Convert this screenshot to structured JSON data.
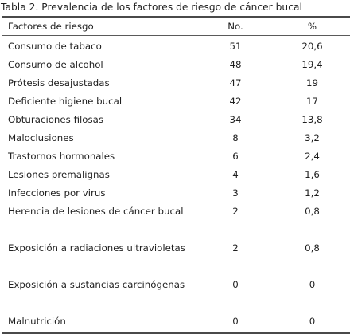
{
  "caption": "Tabla 2. Prevalencia de los factores de riesgo de cáncer bucal",
  "columns": [
    "Factores de riesgo",
    "No.",
    "%"
  ],
  "rows": [
    {
      "factor": "Consumo de tabaco",
      "no": "51",
      "pct": "20,6"
    },
    {
      "factor": "Consumo de alcohol",
      "no": "48",
      "pct": "19,4"
    },
    {
      "factor": "Prótesis desajustadas",
      "no": "47",
      "pct": "19"
    },
    {
      "factor": "Deficiente higiene bucal",
      "no": "42",
      "pct": "17"
    },
    {
      "factor": "Obturaciones filosas",
      "no": "34",
      "pct": "13,8"
    },
    {
      "factor": "Maloclusiones",
      "no": "8",
      "pct": "3,2"
    },
    {
      "factor": "Trastornos hormonales",
      "no": "6",
      "pct": "2,4"
    },
    {
      "factor": "Lesiones premalignas",
      "no": "4",
      "pct": "1,6"
    },
    {
      "factor": "Infecciones por virus",
      "no": "3",
      "pct": "1,2"
    },
    {
      "factor": "Herencia de lesiones de cáncer bucal",
      "no": "2",
      "pct": "0,8"
    },
    {
      "factor": "Exposición a radiaciones ultravioletas",
      "no": "2",
      "pct": "0,8"
    },
    {
      "factor": "Exposición a sustancias carcinógenas",
      "no": "0",
      "pct": "0"
    },
    {
      "factor": "Malnutrición",
      "no": "0",
      "pct": "0"
    }
  ]
}
